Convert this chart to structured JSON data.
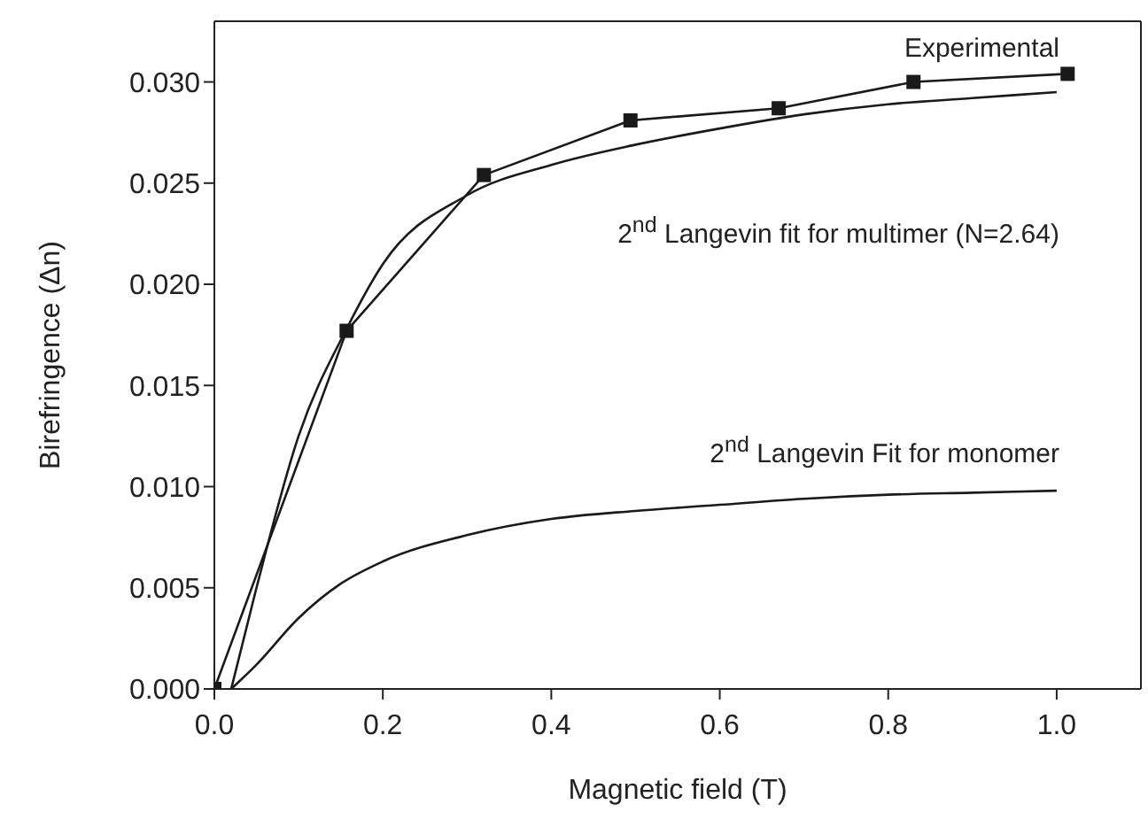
{
  "chart_data": {
    "type": "line",
    "xlabel": "Magnetic field (T)",
    "ylabel": "Birefringence (Δn)",
    "xlim": [
      0,
      1.1
    ],
    "xticks": [
      {
        "value": 0,
        "label": "0.0"
      },
      {
        "value": 0.2,
        "label": "0.2"
      },
      {
        "value": 0.4,
        "label": "0.4"
      },
      {
        "value": 0.6,
        "label": "0.6"
      },
      {
        "value": 0.8,
        "label": "0.8"
      },
      {
        "value": 1,
        "label": "1.0"
      }
    ],
    "ylim": [
      0,
      0.033
    ],
    "yticks": [
      {
        "value": 0,
        "label": "0.000"
      },
      {
        "value": 0.005,
        "label": "0.005"
      },
      {
        "value": 0.01,
        "label": "0.010"
      },
      {
        "value": 0.015,
        "label": "0.015"
      },
      {
        "value": 0.02,
        "label": "0.020"
      },
      {
        "value": 0.025,
        "label": "0.025"
      },
      {
        "value": 0.03,
        "label": "0.030"
      }
    ],
    "series": [
      {
        "color": "#1a1a1a",
        "marker": "square",
        "x": [
          0,
          0.157,
          0.32,
          0.494,
          0.67,
          0.83,
          1.013
        ],
        "values": [
          0,
          0.0177,
          0.0254,
          0.0281,
          0.0287,
          0.03,
          0.0304
        ]
      },
      {
        "color": "#1a1a1a",
        "marker": "none",
        "x": [
          0.02,
          0.05,
          0.1,
          0.157,
          0.2,
          0.3,
          0.4,
          0.5,
          0.6,
          0.7,
          0.8,
          0.9,
          1.0
        ],
        "values": [
          0,
          0.005,
          0.0125,
          0.0178,
          0.021,
          0.0244,
          0.0259,
          0.0269,
          0.0277,
          0.0284,
          0.0289,
          0.0292,
          0.0295
        ]
      },
      {
        "color": "#1a1a1a",
        "marker": "none",
        "x": [
          0.02,
          0.05,
          0.1,
          0.15,
          0.2,
          0.3,
          0.4,
          0.5,
          0.6,
          0.7,
          0.8,
          0.9,
          1.0
        ],
        "values": [
          0,
          0.0012,
          0.0035,
          0.0052,
          0.0063,
          0.0076,
          0.0084,
          0.0088,
          0.0091,
          0.0094,
          0.0096,
          0.0097,
          0.0098
        ]
      }
    ],
    "annotations": [
      "Experimental",
      "2$^{nd}$ Langevin fit for multimer (N=2.64)",
      "2$^{nd}$ Langevin Fit for monomer"
    ]
  }
}
